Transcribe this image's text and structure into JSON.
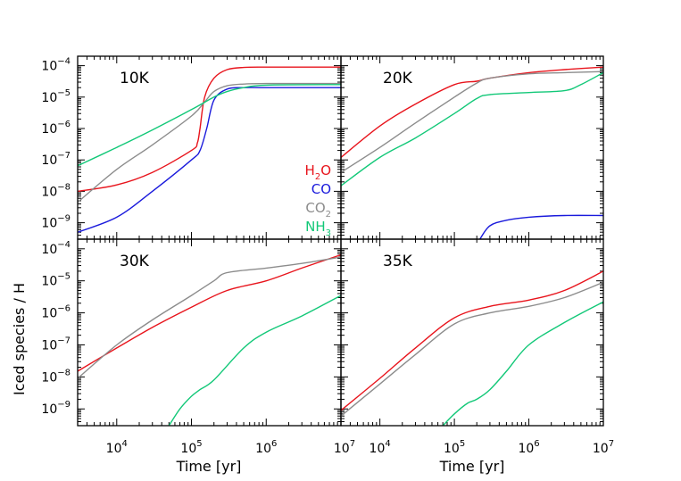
{
  "chart_data": {
    "type": "line",
    "layout": "2x2 panels, shared axes",
    "xlabel": "Time [yr]",
    "ylabel": "Iced species / H",
    "x_scale": "log",
    "y_scale": "log",
    "xlim": [
      3000,
      10000000
    ],
    "ylim": [
      3e-10,
      0.0002
    ],
    "x_ticks": [
      {
        "value": 10000,
        "base": "10",
        "exp": "4"
      },
      {
        "value": 100000,
        "base": "10",
        "exp": "5"
      },
      {
        "value": 1000000,
        "base": "10",
        "exp": "6"
      },
      {
        "value": 10000000,
        "base": "10",
        "exp": "7"
      }
    ],
    "y_ticks": [
      {
        "value": 1e-09,
        "base": "10",
        "exp": "−9"
      },
      {
        "value": 1e-08,
        "base": "10",
        "exp": "−8"
      },
      {
        "value": 1e-07,
        "base": "10",
        "exp": "−7"
      },
      {
        "value": 1e-06,
        "base": "10",
        "exp": "−6"
      },
      {
        "value": 1e-05,
        "base": "10",
        "exp": "−5"
      },
      {
        "value": 0.0001,
        "base": "10",
        "exp": "−4"
      }
    ],
    "legend": {
      "placement": "inside top-left panel, right side",
      "entries": [
        {
          "base": "H",
          "sub": "2",
          "rest": "O",
          "color": "#e8141c"
        },
        {
          "base": "CO",
          "sub": "",
          "rest": "",
          "color": "#1a1adc"
        },
        {
          "base": "CO",
          "sub": "2",
          "rest": "",
          "color": "#8c8c8c"
        },
        {
          "base": "NH",
          "sub": "3",
          "rest": "",
          "color": "#12c878"
        }
      ]
    },
    "panels": [
      {
        "label": "10K",
        "series": [
          {
            "color": "#e8141c",
            "x": [
              3000,
              10000,
              30000,
              100000,
              120000,
              130000,
              150000,
              200000,
              300000,
              500000,
              1000000,
              3000000,
              10000000
            ],
            "y": [
              1e-08,
              1.6e-08,
              4e-08,
              2e-07,
              3.5e-07,
              1e-06,
              1e-05,
              4e-05,
              7.5e-05,
              8.8e-05,
              9e-05,
              9e-05,
              9e-05
            ]
          },
          {
            "color": "#1a1adc",
            "x": [
              3000,
              10000,
              30000,
              100000,
              130000,
              160000,
              200000,
              300000,
              500000,
              1000000,
              10000000
            ],
            "y": [
              5e-10,
              1.5e-09,
              1e-08,
              1e-07,
              2e-07,
              1e-06,
              8e-06,
              1.8e-05,
              2e-05,
              2e-05,
              2e-05
            ]
          },
          {
            "color": "#8c8c8c",
            "x": [
              3000,
              10000,
              30000,
              100000,
              150000,
              200000,
              300000,
              500000,
              1000000,
              10000000
            ],
            "y": [
              4.5e-09,
              5e-08,
              3e-07,
              2.5e-06,
              7e-06,
              1.5e-05,
              2.3e-05,
              2.6e-05,
              2.7e-05,
              2.7e-05
            ]
          },
          {
            "color": "#12c878",
            "x": [
              3000,
              10000,
              30000,
              100000,
              200000,
              300000,
              500000,
              1000000,
              10000000
            ],
            "y": [
              6.5e-08,
              2.5e-07,
              9e-07,
              4e-06,
              1e-05,
              1.5e-05,
              2e-05,
              2.4e-05,
              2.5e-05
            ]
          }
        ]
      },
      {
        "label": "20K",
        "series": [
          {
            "color": "#e8141c",
            "x": [
              3000,
              10000,
              30000,
              100000,
              200000,
              300000,
              1000000,
              3000000,
              10000000
            ],
            "y": [
              1.2e-07,
              1.2e-06,
              6e-06,
              2.5e-05,
              3.2e-05,
              4e-05,
              6e-05,
              7.5e-05,
              9e-05
            ]
          },
          {
            "color": "#1a1adc",
            "x": [
              220000,
              300000,
              500000,
              1000000,
              3000000,
              10000000
            ],
            "y": [
              3e-10,
              8e-10,
              1.2e-09,
              1.5e-09,
              1.7e-09,
              1.7e-09
            ]
          },
          {
            "color": "#8c8c8c",
            "x": [
              3000,
              10000,
              30000,
              100000,
              200000,
              300000,
              1000000,
              3000000,
              10000000
            ],
            "y": [
              4e-08,
              2.5e-07,
              1.5e-06,
              1e-05,
              2.8e-05,
              4e-05,
              5.5e-05,
              6e-05,
              6.5e-05
            ]
          },
          {
            "color": "#12c878",
            "x": [
              3000,
              10000,
              30000,
              100000,
              200000,
              300000,
              1000000,
              3000000,
              5000000,
              10000000
            ],
            "y": [
              1.5e-08,
              1.2e-07,
              5e-07,
              3e-06,
              9e-06,
              1.2e-05,
              1.4e-05,
              1.6e-05,
              2.5e-05,
              6e-05
            ]
          }
        ]
      },
      {
        "label": "30K",
        "series": [
          {
            "color": "#e8141c",
            "x": [
              3000,
              10000,
              30000,
              100000,
              300000,
              1000000,
              3000000,
              10000000
            ],
            "y": [
              1.5e-08,
              8e-08,
              3.5e-07,
              1.5e-06,
              5e-06,
              1e-05,
              2.5e-05,
              6.5e-05
            ]
          },
          {
            "color": "#8c8c8c",
            "x": [
              3000,
              10000,
              30000,
              100000,
              200000,
              300000,
              1000000,
              3000000,
              10000000
            ],
            "y": [
              9e-09,
              1e-07,
              6e-07,
              3.5e-06,
              1e-05,
              1.8e-05,
              2.5e-05,
              3.5e-05,
              5.5e-05
            ]
          },
          {
            "color": "#12c878",
            "x": [
              50000,
              70000,
              100000,
              130000,
              200000,
              500000,
              1000000,
              3000000,
              10000000
            ],
            "y": [
              3e-10,
              1e-09,
              2.5e-09,
              4e-09,
              8e-09,
              8e-08,
              2.5e-07,
              8e-07,
              3.5e-06
            ]
          }
        ]
      },
      {
        "label": "35K",
        "series": [
          {
            "color": "#e8141c",
            "x": [
              3000,
              10000,
              30000,
              100000,
              300000,
              1000000,
              3000000,
              10000000
            ],
            "y": [
              9e-10,
              9e-09,
              8e-08,
              7e-07,
              1.6e-06,
              2.5e-06,
              5e-06,
              2e-05
            ]
          },
          {
            "color": "#8c8c8c",
            "x": [
              3000,
              10000,
              30000,
              100000,
              300000,
              1000000,
              3000000,
              10000000
            ],
            "y": [
              6e-10,
              6e-09,
              5e-08,
              4.5e-07,
              1e-06,
              1.6e-06,
              3e-06,
              9e-06
            ]
          },
          {
            "color": "#12c878",
            "x": [
              70000,
              100000,
              150000,
              200000,
              300000,
              500000,
              1000000,
              3000000,
              10000000
            ],
            "y": [
              3e-10,
              7e-10,
              1.5e-09,
              2e-09,
              4e-09,
              1.5e-08,
              1e-07,
              5e-07,
              2.2e-06
            ]
          }
        ]
      }
    ]
  }
}
